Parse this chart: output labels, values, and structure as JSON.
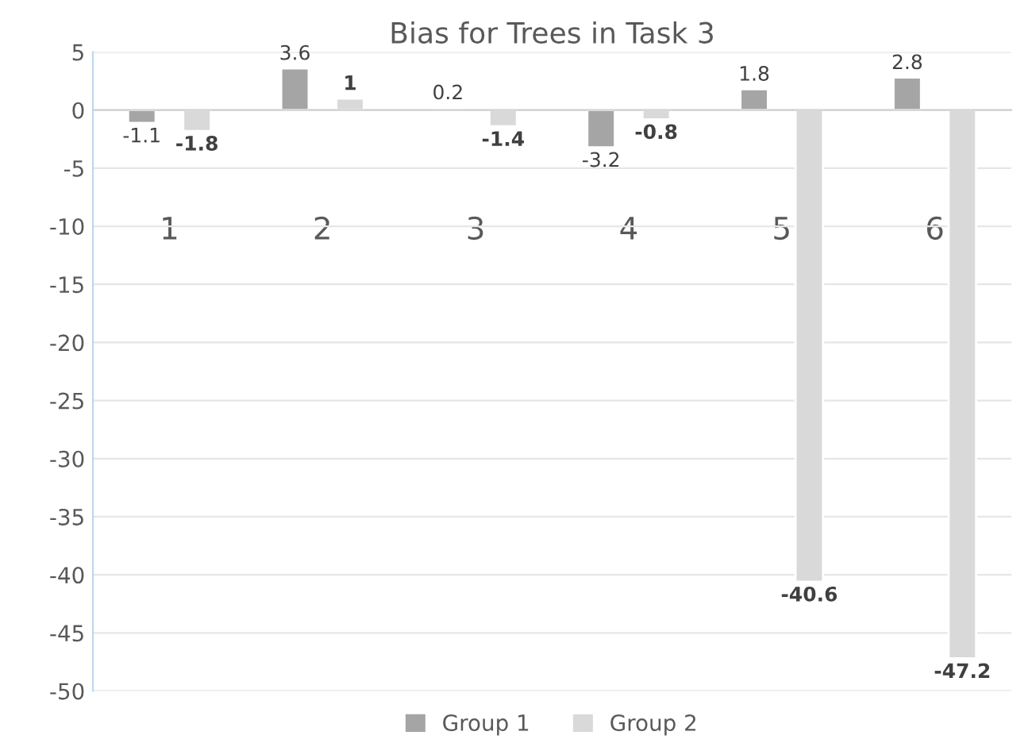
{
  "chart_data": {
    "type": "bar",
    "title": "Bias for Trees in Task 3",
    "categories": [
      "1",
      "2",
      "3",
      "4",
      "5",
      "6"
    ],
    "series": [
      {
        "name": "Group 1",
        "color": "#a5a5a5",
        "values": [
          -1.1,
          3.6,
          0.2,
          -3.2,
          1.8,
          2.8
        ]
      },
      {
        "name": "Group 2",
        "color": "#d9d9d9",
        "values": [
          -1.8,
          1,
          -1.4,
          -0.8,
          -40.6,
          -47.2
        ]
      }
    ],
    "ylim": [
      -50,
      5
    ],
    "yticks": [
      -50,
      -45,
      -40,
      -35,
      -30,
      -25,
      -20,
      -15,
      -10,
      -5,
      0,
      5
    ],
    "grid": "y",
    "legend": "bottom",
    "data_labels": true
  }
}
